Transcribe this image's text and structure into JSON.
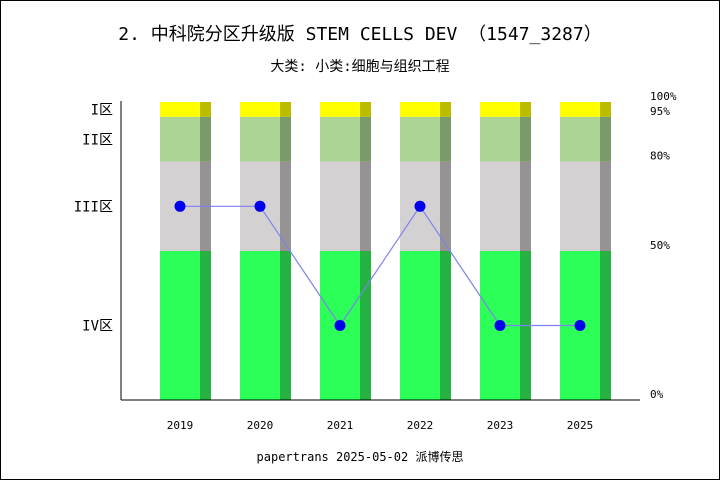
{
  "chart": {
    "title": "2. 中科院分区升级版 STEM CELLS DEV （1547_3287）",
    "subtitle": "大类:  小类:细胞与组织工程",
    "footer": "papertrans 2025-05-02 派博传思"
  },
  "chart_data": {
    "type": "bar",
    "categories": [
      "2019",
      "2020",
      "2021",
      "2022",
      "2023",
      "2025"
    ],
    "zones": [
      {
        "label": "I区",
        "from": 95,
        "to": 100,
        "color": "#ffff00",
        "shade": "#bbbb00"
      },
      {
        "label": "II区",
        "from": 80,
        "to": 95,
        "color": "#acd494",
        "shade": "#7a9a6a"
      },
      {
        "label": "III区",
        "from": 50,
        "to": 80,
        "color": "#d3d1d2",
        "shade": "#959394"
      },
      {
        "label": "IV区",
        "from": 0,
        "to": 50,
        "color": "#2dff59",
        "shade": "#25b240"
      }
    ],
    "right_ticks": [
      "100%",
      "95%",
      "80%",
      "50%",
      "0%"
    ],
    "right_tick_values": [
      100,
      95,
      80,
      50,
      0
    ],
    "series": [
      {
        "values": [
          65,
          65,
          25,
          65,
          25,
          25
        ],
        "color": "#0000ee",
        "line_color": "#8080ee"
      }
    ],
    "ylim": [
      0,
      100
    ]
  }
}
